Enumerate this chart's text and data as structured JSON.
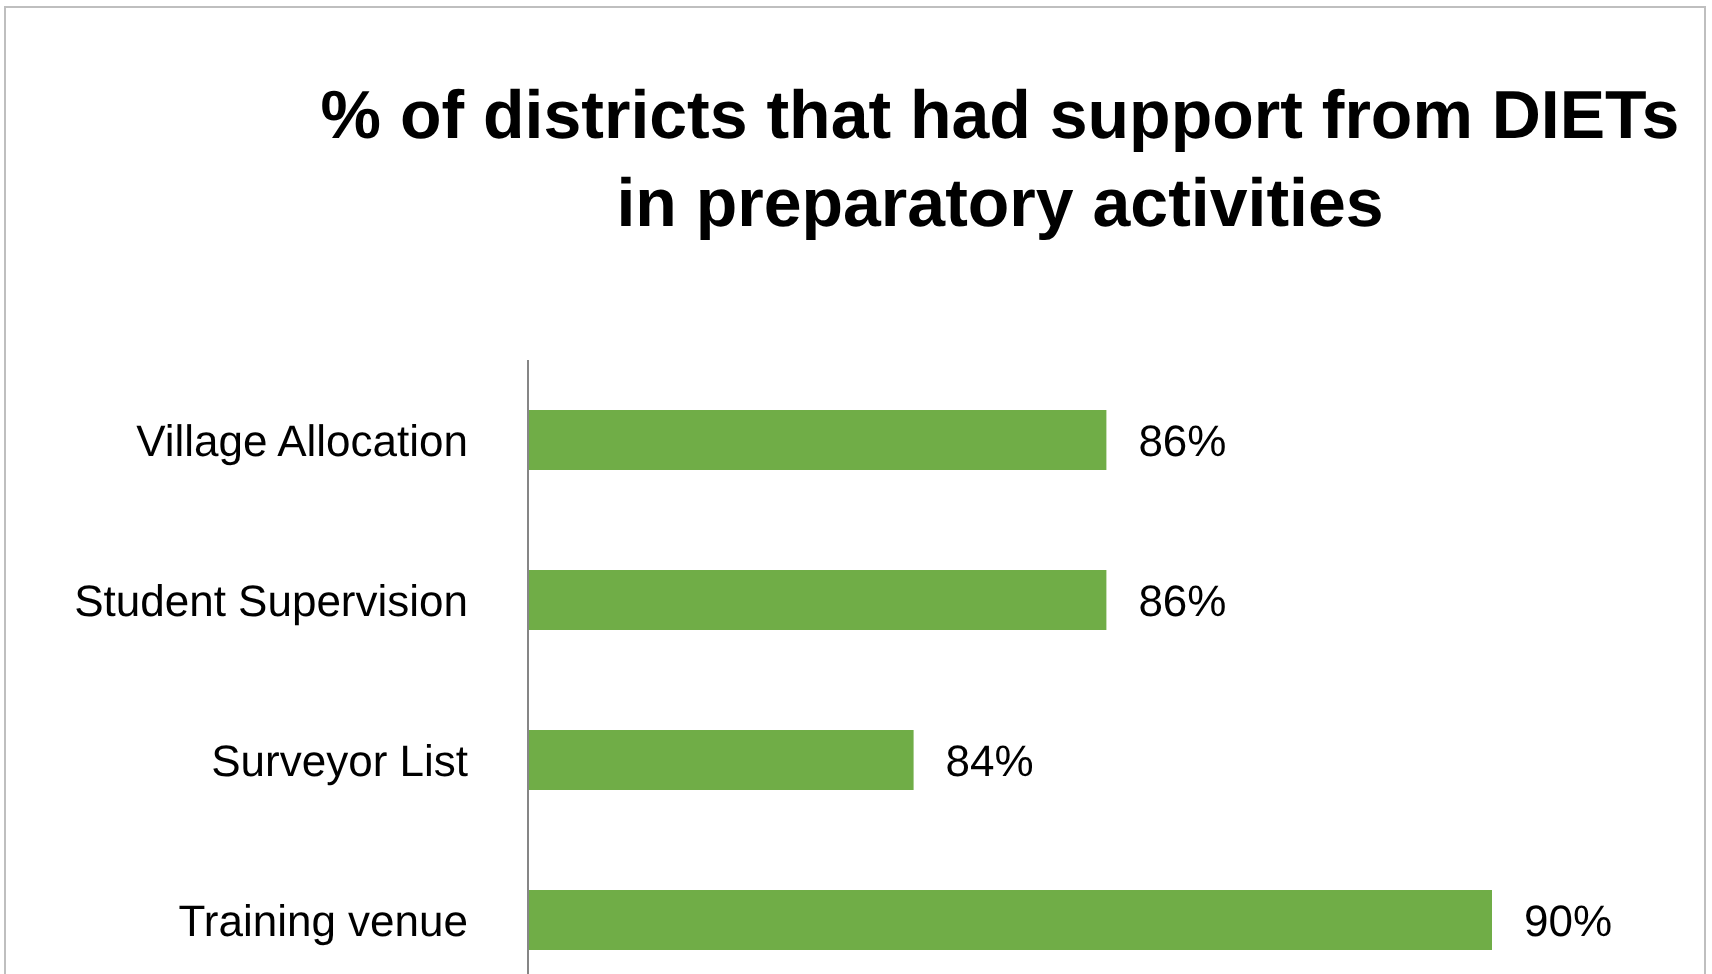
{
  "chart_data": {
    "type": "bar",
    "orientation": "horizontal",
    "title": "% of districts that had support from DIETs in preparatory activities",
    "categories": [
      "Village Allocation",
      "Student Supervision",
      "Surveyor List",
      "Training venue"
    ],
    "values": [
      86,
      86,
      84,
      90
    ],
    "value_labels": [
      "86%",
      "86%",
      "84%",
      "90%"
    ],
    "color": "#70ad47",
    "xlim": [
      80,
      90
    ],
    "tick_labels": "y"
  }
}
